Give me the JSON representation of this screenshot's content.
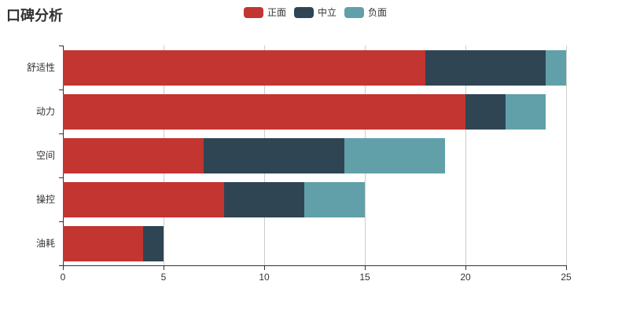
{
  "title": "口碑分析",
  "legend": {
    "items": [
      {
        "id": "positive",
        "label": "正面",
        "color": "#c23531"
      },
      {
        "id": "neutral",
        "label": "中立",
        "color": "#2f4554"
      },
      {
        "id": "negative",
        "label": "负面",
        "color": "#61a0a8"
      }
    ]
  },
  "chart_data": {
    "type": "bar",
    "orientation": "horizontal",
    "stacked": true,
    "title": "口碑分析",
    "categories_top_to_bottom": [
      "舒适性",
      "动力",
      "空间",
      "操控",
      "油耗"
    ],
    "series": [
      {
        "id": "positive",
        "name": "正面",
        "color": "#c23531",
        "values": [
          18,
          20,
          7,
          8,
          4
        ]
      },
      {
        "id": "neutral",
        "name": "中立",
        "color": "#2f4554",
        "values": [
          6,
          2,
          7,
          4,
          1
        ]
      },
      {
        "id": "negative",
        "name": "负面",
        "color": "#61a0a8",
        "values": [
          1,
          2,
          5,
          3,
          0
        ]
      }
    ],
    "xlabel": "",
    "ylabel": "",
    "xlim": [
      0,
      25
    ],
    "x_ticks": [
      0,
      5,
      10,
      15,
      20,
      25
    ],
    "grid": true,
    "legend_position": "top-center",
    "axis_color": "#333333",
    "gridline_color": "#cccccc"
  }
}
